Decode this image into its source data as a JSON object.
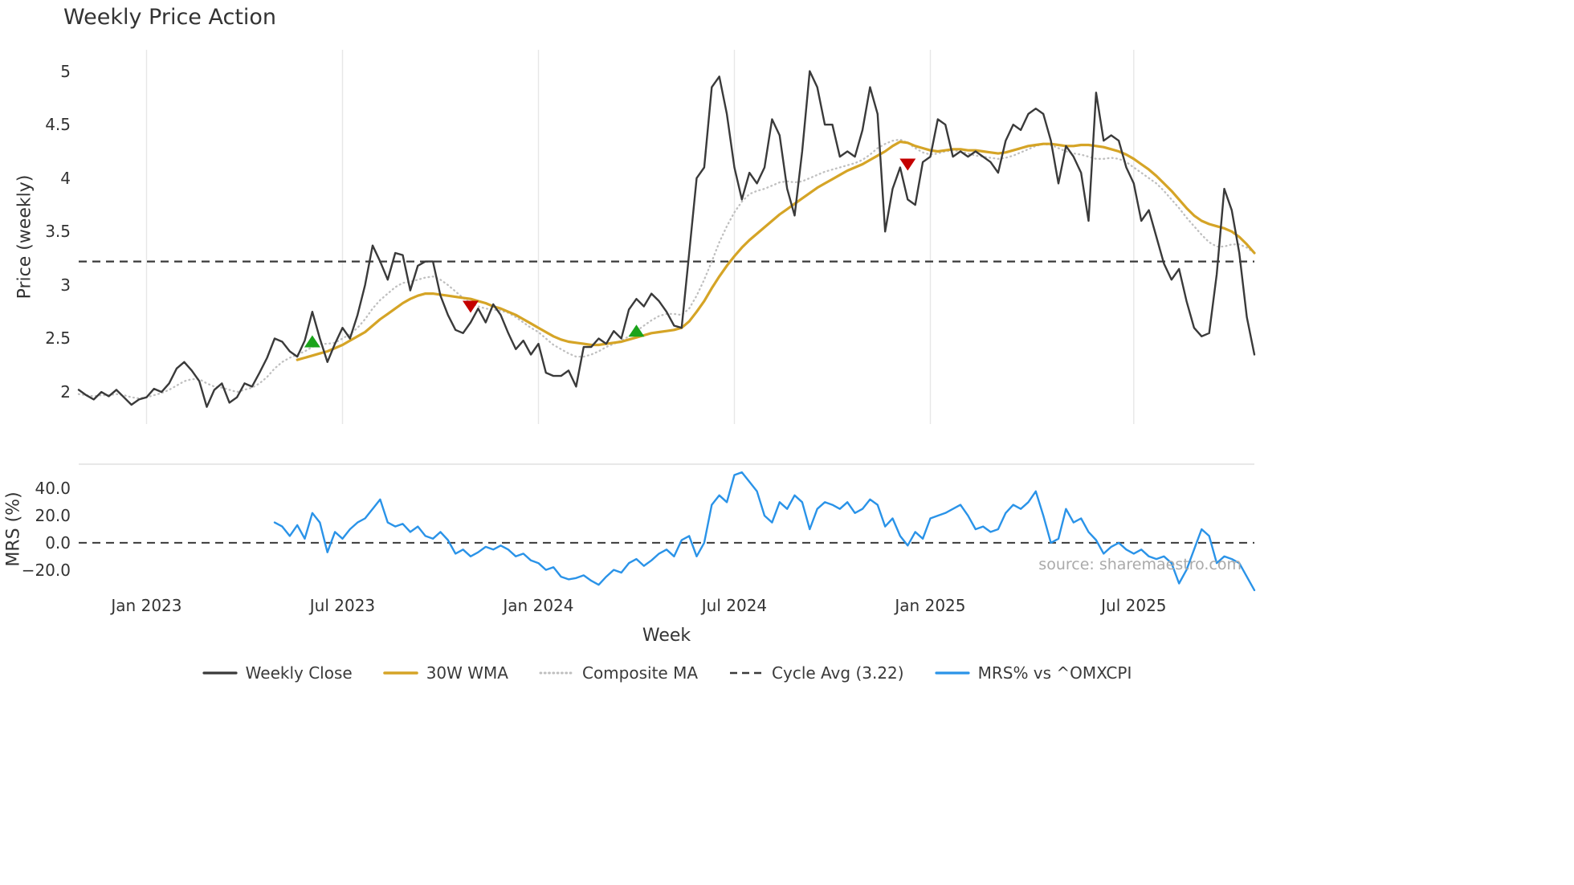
{
  "title": "Weekly Price Action",
  "source": "source: sharemaestro.com",
  "xlabel": "Week",
  "legend": {
    "items": [
      {
        "label": "Weekly Close",
        "color": "#3a3a3a",
        "dash": "none"
      },
      {
        "label": "30W WMA",
        "color": "#d5a426",
        "dash": "none"
      },
      {
        "label": "Composite MA",
        "color": "#bfbfbf",
        "dash": "0.8 4.5"
      },
      {
        "label": "Cycle Avg (3.22)",
        "color": "#3a3a3a",
        "dash": "9 6"
      },
      {
        "label": "MRS% vs ^OMXCPI",
        "color": "#2a93e8",
        "dash": "none"
      }
    ]
  },
  "colors": {
    "background": "#ffffff",
    "grid": "#e7e7e7",
    "panel_border": "#d9d9d9",
    "cycle_avg": "#3a3a3a",
    "zero_line": "#3a3a3a",
    "buy_marker": "#1aa31a",
    "sell_marker": "#c40000",
    "tick_text": "#333333",
    "source_text": "#aaaaaa"
  },
  "chart_data": {
    "type": "line",
    "title": "Weekly Price Action",
    "x_unit": "week",
    "n_weeks": 157,
    "xlabel": "Week",
    "x_ticks": [
      {
        "index": 9,
        "label": "Jan 2023"
      },
      {
        "index": 35,
        "label": "Jul 2023"
      },
      {
        "index": 61,
        "label": "Jan 2024"
      },
      {
        "index": 87,
        "label": "Jul 2024"
      },
      {
        "index": 113,
        "label": "Jan 2025"
      },
      {
        "index": 140,
        "label": "Jul 2025"
      }
    ],
    "panels": [
      {
        "name": "price",
        "ylabel": "Price (weekly)",
        "ylim": [
          1.7,
          5.2
        ],
        "yticks": [
          {
            "label": "5",
            "value": 5
          },
          {
            "label": "4.5",
            "value": 4.5
          },
          {
            "label": "4",
            "value": 4
          },
          {
            "label": "3.5",
            "value": 3.5
          },
          {
            "label": "3",
            "value": 3
          },
          {
            "label": "2.5",
            "value": 2.5
          },
          {
            "label": "2",
            "value": 2
          }
        ],
        "cycle_avg": 3.22,
        "series": [
          {
            "name": "Weekly Close",
            "color": "#3a3a3a",
            "style": "solid",
            "width": 2.4,
            "start_week": 0,
            "values": [
              2.02,
              1.97,
              1.93,
              2.0,
              1.96,
              2.02,
              1.95,
              1.88,
              1.93,
              1.95,
              2.03,
              2.0,
              2.08,
              2.22,
              2.28,
              2.2,
              2.1,
              1.86,
              2.02,
              2.08,
              1.9,
              1.95,
              2.08,
              2.05,
              2.18,
              2.32,
              2.5,
              2.47,
              2.38,
              2.33,
              2.48,
              2.75,
              2.5,
              2.28,
              2.45,
              2.6,
              2.5,
              2.72,
              3.0,
              3.37,
              3.22,
              3.05,
              3.3,
              3.28,
              2.95,
              3.18,
              3.22,
              3.22,
              2.9,
              2.72,
              2.58,
              2.55,
              2.65,
              2.78,
              2.65,
              2.82,
              2.72,
              2.55,
              2.4,
              2.48,
              2.35,
              2.45,
              2.18,
              2.15,
              2.15,
              2.2,
              2.05,
              2.42,
              2.42,
              2.5,
              2.45,
              2.57,
              2.5,
              2.77,
              2.87,
              2.8,
              2.92,
              2.85,
              2.75,
              2.62,
              2.6,
              3.3,
              4.0,
              4.1,
              4.85,
              4.95,
              4.6,
              4.1,
              3.8,
              4.05,
              3.95,
              4.1,
              4.55,
              4.4,
              3.9,
              3.65,
              4.25,
              5.0,
              4.85,
              4.5,
              4.5,
              4.2,
              4.25,
              4.2,
              4.45,
              4.85,
              4.6,
              3.5,
              3.9,
              4.1,
              3.8,
              3.75,
              4.15,
              4.2,
              4.55,
              4.5,
              4.2,
              4.25,
              4.2,
              4.25,
              4.2,
              4.15,
              4.05,
              4.35,
              4.5,
              4.45,
              4.6,
              4.65,
              4.6,
              4.35,
              3.95,
              4.3,
              4.2,
              4.05,
              3.6,
              4.8,
              4.35,
              4.4,
              4.35,
              4.1,
              3.95,
              3.6,
              3.7,
              3.45,
              3.2,
              3.05,
              3.15,
              2.85,
              2.6,
              2.52,
              2.55,
              3.1,
              3.9,
              3.7,
              3.3,
              2.7,
              2.35
            ]
          },
          {
            "name": "30W WMA",
            "color": "#d5a426",
            "style": "solid",
            "width": 3.2,
            "start_week": 29,
            "values": [
              2.3,
              2.32,
              2.34,
              2.36,
              2.38,
              2.41,
              2.44,
              2.48,
              2.52,
              2.56,
              2.62,
              2.68,
              2.73,
              2.78,
              2.83,
              2.87,
              2.9,
              2.92,
              2.92,
              2.91,
              2.9,
              2.89,
              2.88,
              2.87,
              2.85,
              2.83,
              2.8,
              2.78,
              2.75,
              2.72,
              2.68,
              2.64,
              2.6,
              2.56,
              2.52,
              2.49,
              2.47,
              2.46,
              2.45,
              2.44,
              2.44,
              2.45,
              2.46,
              2.47,
              2.49,
              2.51,
              2.53,
              2.55,
              2.56,
              2.57,
              2.58,
              2.6,
              2.66,
              2.75,
              2.85,
              2.97,
              3.08,
              3.18,
              3.27,
              3.35,
              3.42,
              3.48,
              3.54,
              3.6,
              3.66,
              3.71,
              3.76,
              3.81,
              3.86,
              3.91,
              3.95,
              3.99,
              4.03,
              4.07,
              4.1,
              4.13,
              4.17,
              4.21,
              4.25,
              4.3,
              4.34,
              4.33,
              4.3,
              4.28,
              4.26,
              4.25,
              4.26,
              4.27,
              4.27,
              4.26,
              4.26,
              4.25,
              4.24,
              4.23,
              4.24,
              4.26,
              4.28,
              4.3,
              4.31,
              4.32,
              4.32,
              4.31,
              4.3,
              4.3,
              4.31,
              4.31,
              4.3,
              4.29,
              4.27,
              4.25,
              4.22,
              4.18,
              4.13,
              4.08,
              4.02,
              3.95,
              3.88,
              3.8,
              3.72,
              3.65,
              3.6,
              3.57,
              3.55,
              3.53,
              3.5,
              3.45,
              3.38,
              3.3
            ]
          },
          {
            "name": "Composite MA",
            "color": "#bfbfbf",
            "style": "dotted",
            "width": 2.3,
            "start_week": 0,
            "values": [
              1.98,
              1.97,
              1.96,
              1.97,
              1.97,
              1.98,
              1.97,
              1.95,
              1.94,
              1.95,
              1.97,
              1.99,
              2.02,
              2.06,
              2.1,
              2.12,
              2.12,
              2.08,
              2.05,
              2.04,
              2.02,
              2.0,
              2.02,
              2.04,
              2.08,
              2.14,
              2.22,
              2.28,
              2.32,
              2.35,
              2.38,
              2.42,
              2.45,
              2.45,
              2.46,
              2.5,
              2.54,
              2.6,
              2.68,
              2.78,
              2.86,
              2.92,
              2.98,
              3.02,
              3.03,
              3.05,
              3.07,
              3.08,
              3.05,
              3.0,
              2.94,
              2.88,
              2.83,
              2.8,
              2.78,
              2.77,
              2.76,
              2.74,
              2.7,
              2.65,
              2.6,
              2.56,
              2.5,
              2.44,
              2.4,
              2.36,
              2.33,
              2.33,
              2.35,
              2.38,
              2.42,
              2.45,
              2.48,
              2.52,
              2.57,
              2.62,
              2.67,
              2.71,
              2.73,
              2.73,
              2.72,
              2.78,
              2.9,
              3.05,
              3.22,
              3.4,
              3.55,
              3.68,
              3.78,
              3.85,
              3.88,
              3.9,
              3.93,
              3.96,
              3.97,
              3.96,
              3.97,
              4.0,
              4.03,
              4.06,
              4.08,
              4.1,
              4.12,
              4.14,
              4.17,
              4.22,
              4.28,
              4.32,
              4.35,
              4.36,
              4.33,
              4.28,
              4.24,
              4.22,
              4.23,
              4.25,
              4.26,
              4.25,
              4.23,
              4.21,
              4.2,
              4.19,
              4.18,
              4.19,
              4.21,
              4.24,
              4.27,
              4.3,
              4.32,
              4.31,
              4.28,
              4.25,
              4.23,
              4.22,
              4.2,
              4.18,
              4.18,
              4.19,
              4.18,
              4.15,
              4.1,
              4.05,
              4.0,
              3.95,
              3.88,
              3.8,
              3.72,
              3.63,
              3.55,
              3.47,
              3.4,
              3.36,
              3.36,
              3.38,
              3.38,
              3.35,
              3.3
            ]
          }
        ],
        "buy_signals": [
          {
            "week": 31,
            "price": 2.47
          },
          {
            "week": 74,
            "price": 2.57
          }
        ],
        "sell_signals": [
          {
            "week": 52,
            "price": 2.8
          },
          {
            "week": 110,
            "price": 4.13
          }
        ]
      },
      {
        "name": "mrs",
        "ylabel": "MRS (%)",
        "ylim": [
          -38,
          58
        ],
        "yticks": [
          {
            "label": "40.0",
            "value": 40
          },
          {
            "label": "20.0",
            "value": 20
          },
          {
            "label": "0.0",
            "value": 0
          },
          {
            "label": "−20.0",
            "value": -20
          }
        ],
        "zero_line": 0,
        "series": [
          {
            "name": "MRS% vs ^OMXCPI",
            "color": "#2a93e8",
            "style": "solid",
            "width": 2.4,
            "start_week": 26,
            "values": [
              15,
              12,
              5,
              13,
              3,
              22,
              15,
              -7,
              8,
              3,
              10,
              15,
              18,
              25,
              32,
              15,
              12,
              14,
              8,
              12,
              5,
              3,
              8,
              2,
              -8,
              -5,
              -10,
              -7,
              -3,
              -5,
              -2,
              -5,
              -10,
              -8,
              -13,
              -15,
              -20,
              -18,
              -25,
              -27,
              -26,
              -24,
              -28,
              -31,
              -25,
              -20,
              -22,
              -15,
              -12,
              -17,
              -13,
              -8,
              -5,
              -10,
              2,
              5,
              -10,
              0,
              28,
              35,
              30,
              50,
              52,
              45,
              38,
              20,
              15,
              30,
              25,
              35,
              30,
              10,
              25,
              30,
              28,
              25,
              30,
              22,
              25,
              32,
              28,
              12,
              18,
              5,
              -2,
              8,
              3,
              18,
              20,
              22,
              25,
              28,
              20,
              10,
              12,
              8,
              10,
              22,
              28,
              25,
              30,
              38,
              20,
              0,
              3,
              25,
              15,
              18,
              8,
              2,
              -8,
              -3,
              0,
              -5,
              -8,
              -5,
              -10,
              -12,
              -10,
              -15,
              -30,
              -20,
              -5,
              10,
              5,
              -15,
              -10,
              -12,
              -15,
              -25,
              -35
            ]
          }
        ]
      }
    ]
  }
}
